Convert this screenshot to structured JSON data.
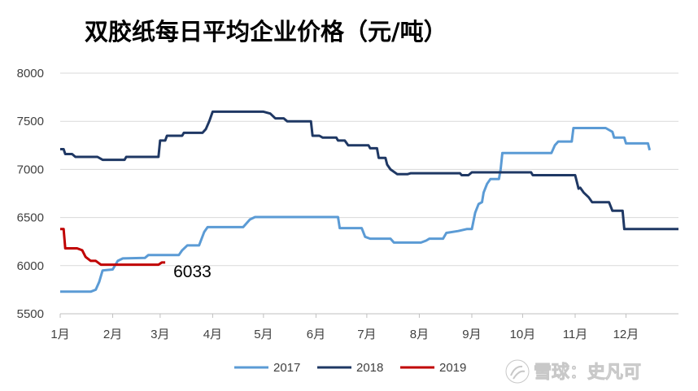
{
  "chart_data": {
    "type": "line",
    "title": "双胶纸每日平均企业价格（元/吨）",
    "x_unit": "day_of_year",
    "xlim": [
      0,
      365
    ],
    "ylim": [
      5500,
      8000
    ],
    "yticks": [
      5500,
      6000,
      6500,
      7000,
      7500,
      8000
    ],
    "y_tick_labels": [
      "5500",
      "6000",
      "6500",
      "7000",
      "7500",
      "8000"
    ],
    "x_tick_labels": [
      "1月",
      "2月",
      "3月",
      "4月",
      "5月",
      "6月",
      "7月",
      "8月",
      "9月",
      "10月",
      "11月",
      "12月"
    ],
    "x_tick_positions": [
      0,
      31,
      59,
      90,
      120,
      151,
      181,
      212,
      243,
      273,
      304,
      334
    ],
    "grid": "horizontal",
    "legend_position": "bottom",
    "annotation": {
      "text": "6033",
      "x": 62,
      "y": 6033
    },
    "series": [
      {
        "name": "2017",
        "color": "#5b9bd5",
        "points": [
          [
            0,
            5730
          ],
          [
            18,
            5730
          ],
          [
            21,
            5750
          ],
          [
            23,
            5830
          ],
          [
            25,
            5950
          ],
          [
            31,
            5960
          ],
          [
            34,
            6050
          ],
          [
            37,
            6075
          ],
          [
            50,
            6080
          ],
          [
            52,
            6110
          ],
          [
            70,
            6110
          ],
          [
            72,
            6160
          ],
          [
            75,
            6210
          ],
          [
            82,
            6210
          ],
          [
            85,
            6350
          ],
          [
            87,
            6400
          ],
          [
            108,
            6400
          ],
          [
            112,
            6480
          ],
          [
            115,
            6505
          ],
          [
            160,
            6505
          ],
          [
            164,
            6505
          ],
          [
            165,
            6390
          ],
          [
            178,
            6390
          ],
          [
            180,
            6300
          ],
          [
            183,
            6280
          ],
          [
            195,
            6280
          ],
          [
            197,
            6240
          ],
          [
            213,
            6240
          ],
          [
            216,
            6260
          ],
          [
            218,
            6280
          ],
          [
            226,
            6280
          ],
          [
            228,
            6340
          ],
          [
            235,
            6360
          ],
          [
            240,
            6380
          ],
          [
            243,
            6380
          ],
          [
            245,
            6550
          ],
          [
            247,
            6640
          ],
          [
            249,
            6660
          ],
          [
            250,
            6760
          ],
          [
            252,
            6850
          ],
          [
            254,
            6900
          ],
          [
            259,
            6900
          ],
          [
            260,
            7000
          ],
          [
            261,
            7170
          ],
          [
            290,
            7170
          ],
          [
            292,
            7250
          ],
          [
            294,
            7290
          ],
          [
            302,
            7290
          ],
          [
            303,
            7430
          ],
          [
            322,
            7430
          ],
          [
            326,
            7390
          ],
          [
            327,
            7330
          ],
          [
            333,
            7330
          ],
          [
            334,
            7270
          ],
          [
            347,
            7270
          ],
          [
            348,
            7200
          ]
        ]
      },
      {
        "name": "2018",
        "color": "#1f3864",
        "points": [
          [
            0,
            7210
          ],
          [
            2,
            7210
          ],
          [
            3,
            7160
          ],
          [
            7,
            7160
          ],
          [
            9,
            7130
          ],
          [
            22,
            7130
          ],
          [
            25,
            7100
          ],
          [
            38,
            7100
          ],
          [
            39,
            7130
          ],
          [
            58,
            7130
          ],
          [
            59,
            7300
          ],
          [
            62,
            7300
          ],
          [
            63,
            7350
          ],
          [
            72,
            7350
          ],
          [
            73,
            7380
          ],
          [
            84,
            7380
          ],
          [
            86,
            7420
          ],
          [
            88,
            7500
          ],
          [
            90,
            7600
          ],
          [
            120,
            7600
          ],
          [
            124,
            7580
          ],
          [
            127,
            7530
          ],
          [
            132,
            7530
          ],
          [
            134,
            7500
          ],
          [
            148,
            7500
          ],
          [
            149,
            7350
          ],
          [
            153,
            7350
          ],
          [
            155,
            7330
          ],
          [
            163,
            7330
          ],
          [
            164,
            7300
          ],
          [
            168,
            7300
          ],
          [
            170,
            7250
          ],
          [
            182,
            7250
          ],
          [
            183,
            7220
          ],
          [
            187,
            7220
          ],
          [
            188,
            7120
          ],
          [
            192,
            7120
          ],
          [
            193,
            7050
          ],
          [
            195,
            7000
          ],
          [
            199,
            6950
          ],
          [
            205,
            6950
          ],
          [
            207,
            6960
          ],
          [
            236,
            6960
          ],
          [
            237,
            6940
          ],
          [
            241,
            6940
          ],
          [
            243,
            6970
          ],
          [
            278,
            6970
          ],
          [
            279,
            6940
          ],
          [
            304,
            6940
          ],
          [
            306,
            6800
          ],
          [
            307,
            6810
          ],
          [
            309,
            6760
          ],
          [
            312,
            6710
          ],
          [
            314,
            6660
          ],
          [
            324,
            6660
          ],
          [
            326,
            6570
          ],
          [
            332,
            6570
          ],
          [
            333,
            6380
          ],
          [
            365,
            6380
          ]
        ]
      },
      {
        "name": "2019",
        "color": "#c00000",
        "points": [
          [
            0,
            6380
          ],
          [
            2,
            6380
          ],
          [
            3,
            6180
          ],
          [
            10,
            6180
          ],
          [
            13,
            6160
          ],
          [
            15,
            6090
          ],
          [
            18,
            6050
          ],
          [
            21,
            6050
          ],
          [
            24,
            6010
          ],
          [
            58,
            6010
          ],
          [
            60,
            6033
          ],
          [
            62,
            6033
          ]
        ]
      }
    ]
  },
  "watermark": {
    "text": "雪球：史凡可"
  }
}
